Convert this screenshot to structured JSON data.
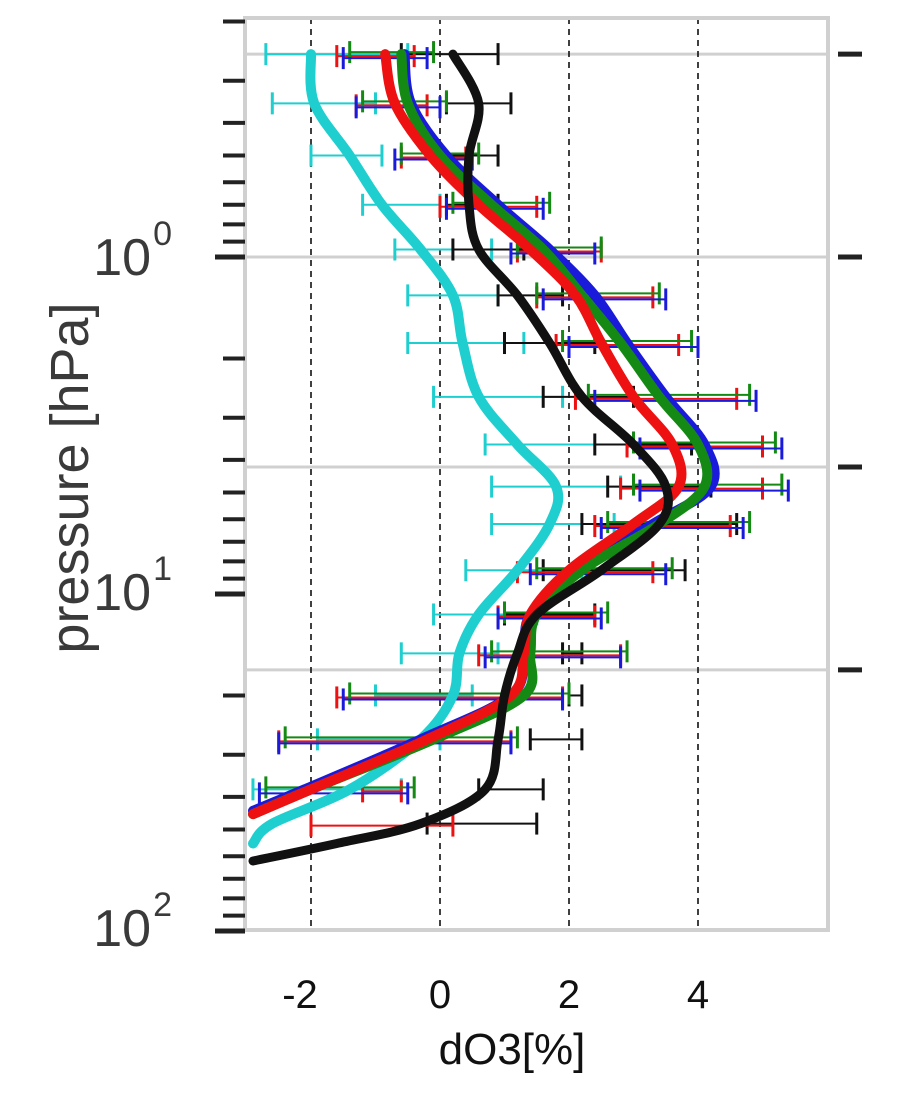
{
  "chart_data": {
    "type": "line",
    "xlabel": "dO3[%]",
    "ylabel": "pressure [hPa]",
    "x_ticks": [
      -2,
      0,
      2,
      4
    ],
    "x_tick_labels": [
      "-2",
      "0",
      "2",
      "4"
    ],
    "xlim": [
      -2.9,
      6.0
    ],
    "y_scale": "log",
    "y_inverted": true,
    "ylim": [
      0.2,
      100
    ],
    "y_ticks": [
      1,
      10,
      100
    ],
    "y_tick_labels": [
      {
        "base": "10",
        "exp": "0"
      },
      {
        "base": "10",
        "exp": "1"
      },
      {
        "base": "10",
        "exp": "2"
      }
    ],
    "grid": "horizontal light grey lines; vertical dashed reference lines at x = -2, 0, 2, 4",
    "colors": {
      "cyan": "#1fcfcf",
      "black": "#111111",
      "red": "#ee1111",
      "green": "#148a14",
      "blue": "#1a1adb",
      "grid": "#d0d0d0",
      "frame": "#d0d0d0"
    },
    "series": [
      {
        "color": "cyan",
        "points": [
          [
            -2.0,
            0.25
          ],
          [
            -1.95,
            0.35
          ],
          [
            -1.4,
            0.5
          ],
          [
            -0.9,
            0.7
          ],
          [
            -0.3,
            0.95
          ],
          [
            0.2,
            1.3
          ],
          [
            0.35,
            1.8
          ],
          [
            0.6,
            2.6
          ],
          [
            1.2,
            3.6
          ],
          [
            1.8,
            4.8
          ],
          [
            1.7,
            6.2
          ],
          [
            1.2,
            8.5
          ],
          [
            0.6,
            11.5
          ],
          [
            0.3,
            15
          ],
          [
            0.2,
            20
          ],
          [
            -0.3,
            27
          ],
          [
            -1.4,
            38
          ],
          [
            -2.6,
            48
          ],
          [
            -2.9,
            55
          ]
        ],
        "error_bars": [
          {
            "y": 0.25,
            "xmin": -2.7,
            "xmax": -0.5
          },
          {
            "y": 0.35,
            "xmin": -2.6,
            "xmax": -1.0
          },
          {
            "y": 0.5,
            "xmin": -2.0,
            "xmax": -0.9
          },
          {
            "y": 0.7,
            "xmin": -1.2,
            "xmax": 0.0
          },
          {
            "y": 0.95,
            "xmin": -0.7,
            "xmax": 0.8
          },
          {
            "y": 1.3,
            "xmin": -0.5,
            "xmax": 0.9
          },
          {
            "y": 1.8,
            "xmin": -0.5,
            "xmax": 1.3
          },
          {
            "y": 2.6,
            "xmin": -0.1,
            "xmax": 1.9
          },
          {
            "y": 3.6,
            "xmin": 0.7,
            "xmax": 2.9
          },
          {
            "y": 4.8,
            "xmin": 0.8,
            "xmax": 2.8
          },
          {
            "y": 6.2,
            "xmin": 0.8,
            "xmax": 2.7
          },
          {
            "y": 8.5,
            "xmin": 0.4,
            "xmax": 2.2
          },
          {
            "y": 11.5,
            "xmin": -0.1,
            "xmax": 1.5
          },
          {
            "y": 15,
            "xmin": -0.6,
            "xmax": 0.9
          },
          {
            "y": 20,
            "xmin": -1.0,
            "xmax": 0.5
          },
          {
            "y": 27,
            "xmin": -1.9,
            "xmax": 0.0
          },
          {
            "y": 38,
            "xmin": -2.9,
            "xmax": -0.6
          }
        ]
      },
      {
        "color": "black",
        "points": [
          [
            0.2,
            0.25
          ],
          [
            0.6,
            0.35
          ],
          [
            0.45,
            0.5
          ],
          [
            0.45,
            0.7
          ],
          [
            0.6,
            0.95
          ],
          [
            1.2,
            1.3
          ],
          [
            1.7,
            1.8
          ],
          [
            2.2,
            2.6
          ],
          [
            3.0,
            3.6
          ],
          [
            3.5,
            4.8
          ],
          [
            3.4,
            6.2
          ],
          [
            2.5,
            8.5
          ],
          [
            1.5,
            11.5
          ],
          [
            1.2,
            15
          ],
          [
            1.0,
            20
          ],
          [
            0.9,
            27
          ],
          [
            0.7,
            38
          ],
          [
            -0.3,
            48
          ],
          [
            -1.6,
            55
          ],
          [
            -2.9,
            62
          ]
        ],
        "error_bars": [
          {
            "y": 0.25,
            "xmin": -0.6,
            "xmax": 0.9
          },
          {
            "y": 0.35,
            "xmin": 0.1,
            "xmax": 1.1
          },
          {
            "y": 0.5,
            "xmin": 0.0,
            "xmax": 0.9
          },
          {
            "y": 0.7,
            "xmin": 0.1,
            "xmax": 0.9
          },
          {
            "y": 0.95,
            "xmin": 0.2,
            "xmax": 1.3
          },
          {
            "y": 1.3,
            "xmin": 0.9,
            "xmax": 1.9
          },
          {
            "y": 1.8,
            "xmin": 1.0,
            "xmax": 2.4
          },
          {
            "y": 2.6,
            "xmin": 1.6,
            "xmax": 3.0
          },
          {
            "y": 3.6,
            "xmin": 2.4,
            "xmax": 3.9
          },
          {
            "y": 4.8,
            "xmin": 2.6,
            "xmax": 4.2
          },
          {
            "y": 6.2,
            "xmin": 2.2,
            "xmax": 4.6
          },
          {
            "y": 8.5,
            "xmin": 1.6,
            "xmax": 3.8
          },
          {
            "y": 11.5,
            "xmin": 1.0,
            "xmax": 2.4
          },
          {
            "y": 15,
            "xmin": 1.9,
            "xmax": 2.2
          },
          {
            "y": 20,
            "xmin": 2.0,
            "xmax": 2.2
          },
          {
            "y": 27,
            "xmin": 1.4,
            "xmax": 2.2
          },
          {
            "y": 38,
            "xmin": 0.6,
            "xmax": 1.6
          },
          {
            "y": 48,
            "xmin": -0.2,
            "xmax": 1.5
          }
        ]
      },
      {
        "color": "red",
        "points": [
          [
            -0.85,
            0.25
          ],
          [
            -0.7,
            0.35
          ],
          [
            -0.15,
            0.5
          ],
          [
            0.6,
            0.7
          ],
          [
            1.4,
            0.95
          ],
          [
            2.1,
            1.3
          ],
          [
            2.5,
            1.8
          ],
          [
            3.0,
            2.6
          ],
          [
            3.6,
            3.6
          ],
          [
            3.7,
            4.8
          ],
          [
            3.0,
            6.2
          ],
          [
            2.0,
            8.5
          ],
          [
            1.4,
            11.5
          ],
          [
            1.3,
            15
          ],
          [
            1.1,
            20
          ],
          [
            -0.2,
            27
          ],
          [
            -2.0,
            38
          ],
          [
            -2.9,
            45
          ]
        ],
        "error_bars": [
          {
            "y": 0.25,
            "xmin": -1.6,
            "xmax": -0.4
          },
          {
            "y": 0.35,
            "xmin": -1.3,
            "xmax": -0.2
          },
          {
            "y": 0.5,
            "xmin": -0.6,
            "xmax": 0.4
          },
          {
            "y": 0.7,
            "xmin": 0.0,
            "xmax": 1.5
          },
          {
            "y": 0.95,
            "xmin": 1.2,
            "xmax": 2.5
          },
          {
            "y": 1.3,
            "xmin": 1.5,
            "xmax": 3.3
          },
          {
            "y": 1.8,
            "xmin": 1.8,
            "xmax": 3.7
          },
          {
            "y": 2.6,
            "xmin": 2.1,
            "xmax": 4.6
          },
          {
            "y": 3.6,
            "xmin": 2.9,
            "xmax": 5.0
          },
          {
            "y": 4.8,
            "xmin": 2.8,
            "xmax": 5.0
          },
          {
            "y": 6.2,
            "xmin": 2.4,
            "xmax": 4.5
          },
          {
            "y": 8.5,
            "xmin": 1.2,
            "xmax": 3.3
          },
          {
            "y": 11.5,
            "xmin": 0.9,
            "xmax": 2.4
          },
          {
            "y": 15,
            "xmin": 0.6,
            "xmax": 2.8
          },
          {
            "y": 20,
            "xmin": -1.6,
            "xmax": 1.9
          },
          {
            "y": 27,
            "xmin": -2.5,
            "xmax": 1.1
          },
          {
            "y": 38,
            "xmin": -1.2,
            "xmax": -0.6
          },
          {
            "y": 48,
            "xmin": -2.0,
            "xmax": 0.2
          }
        ]
      },
      {
        "color": "green",
        "points": [
          [
            -0.6,
            0.25
          ],
          [
            -0.5,
            0.35
          ],
          [
            0.0,
            0.5
          ],
          [
            0.8,
            0.7
          ],
          [
            1.6,
            0.95
          ],
          [
            2.2,
            1.3
          ],
          [
            2.8,
            1.8
          ],
          [
            3.4,
            2.6
          ],
          [
            4.0,
            3.6
          ],
          [
            4.1,
            4.8
          ],
          [
            3.4,
            6.2
          ],
          [
            2.2,
            8.5
          ],
          [
            1.5,
            11.5
          ],
          [
            1.4,
            15
          ],
          [
            1.3,
            20
          ],
          [
            -0.1,
            27
          ],
          [
            -2.0,
            38
          ],
          [
            -2.9,
            45
          ]
        ],
        "error_bars": [
          {
            "y": 0.25,
            "xmin": -1.4,
            "xmax": -0.1
          },
          {
            "y": 0.35,
            "xmin": -1.2,
            "xmax": 0.1
          },
          {
            "y": 0.5,
            "xmin": -0.6,
            "xmax": 0.6
          },
          {
            "y": 0.7,
            "xmin": 0.2,
            "xmax": 1.7
          },
          {
            "y": 0.95,
            "xmin": 1.2,
            "xmax": 2.5
          },
          {
            "y": 1.3,
            "xmin": 1.5,
            "xmax": 3.4
          },
          {
            "y": 1.8,
            "xmin": 1.9,
            "xmax": 3.9
          },
          {
            "y": 2.6,
            "xmin": 2.3,
            "xmax": 4.8
          },
          {
            "y": 3.6,
            "xmin": 3.0,
            "xmax": 5.2
          },
          {
            "y": 4.8,
            "xmin": 3.0,
            "xmax": 5.3
          },
          {
            "y": 6.2,
            "xmin": 2.6,
            "xmax": 4.8
          },
          {
            "y": 8.5,
            "xmin": 1.5,
            "xmax": 3.6
          },
          {
            "y": 11.5,
            "xmin": 1.0,
            "xmax": 2.6
          },
          {
            "y": 15,
            "xmin": 0.8,
            "xmax": 2.9
          },
          {
            "y": 20,
            "xmin": -1.4,
            "xmax": 2.0
          },
          {
            "y": 27,
            "xmin": -2.4,
            "xmax": 1.2
          },
          {
            "y": 38,
            "xmin": -2.7,
            "xmax": -0.4
          }
        ]
      },
      {
        "color": "blue",
        "points": [
          [
            -0.55,
            0.25
          ],
          [
            -0.45,
            0.35
          ],
          [
            0.1,
            0.5
          ],
          [
            0.9,
            0.7
          ],
          [
            1.7,
            0.95
          ],
          [
            2.4,
            1.3
          ],
          [
            2.9,
            1.8
          ],
          [
            3.5,
            2.6
          ],
          [
            4.1,
            3.6
          ],
          [
            4.2,
            4.8
          ],
          [
            3.3,
            6.2
          ],
          [
            2.1,
            8.5
          ],
          [
            1.4,
            11.5
          ],
          [
            1.3,
            15
          ],
          [
            1.1,
            20
          ],
          [
            -0.3,
            27
          ],
          [
            -2.1,
            38
          ],
          [
            -2.9,
            44
          ]
        ],
        "error_bars": [
          {
            "y": 0.25,
            "xmin": -1.5,
            "xmax": -0.2
          },
          {
            "y": 0.35,
            "xmin": -1.3,
            "xmax": 0.0
          },
          {
            "y": 0.5,
            "xmin": -0.7,
            "xmax": 0.5
          },
          {
            "y": 0.7,
            "xmin": 0.1,
            "xmax": 1.6
          },
          {
            "y": 0.95,
            "xmin": 1.1,
            "xmax": 2.4
          },
          {
            "y": 1.3,
            "xmin": 1.6,
            "xmax": 3.5
          },
          {
            "y": 1.8,
            "xmin": 2.0,
            "xmax": 4.0
          },
          {
            "y": 2.6,
            "xmin": 2.4,
            "xmax": 4.9
          },
          {
            "y": 3.6,
            "xmin": 3.1,
            "xmax": 5.3
          },
          {
            "y": 4.8,
            "xmin": 3.1,
            "xmax": 5.4
          },
          {
            "y": 6.2,
            "xmin": 2.5,
            "xmax": 4.7
          },
          {
            "y": 8.5,
            "xmin": 1.4,
            "xmax": 3.5
          },
          {
            "y": 11.5,
            "xmin": 0.9,
            "xmax": 2.5
          },
          {
            "y": 15,
            "xmin": 0.7,
            "xmax": 2.8
          },
          {
            "y": 20,
            "xmin": -1.5,
            "xmax": 1.9
          },
          {
            "y": 27,
            "xmin": -2.5,
            "xmax": 1.1
          },
          {
            "y": 38,
            "xmin": -2.8,
            "xmax": -0.5
          }
        ]
      }
    ]
  }
}
